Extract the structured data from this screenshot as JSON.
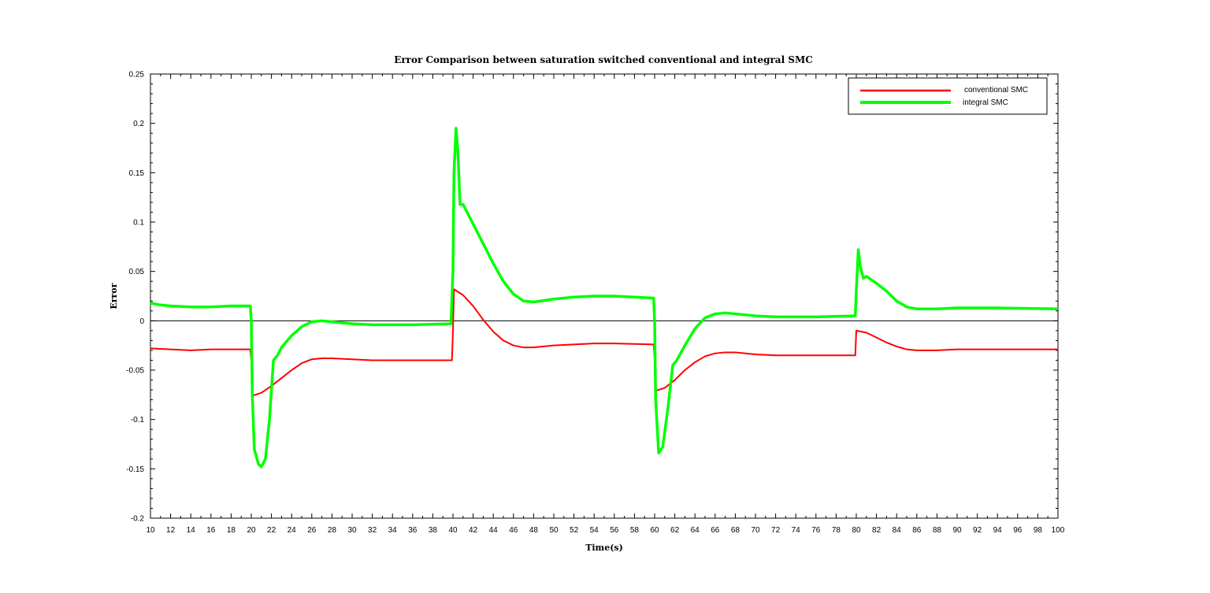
{
  "chart_data": {
    "type": "line",
    "title": "Error Comparison between saturation switched conventional and integral SMC",
    "xlabel": "Time(s)",
    "ylabel": "Error",
    "xlim": [
      10,
      100
    ],
    "ylim": [
      -0.2,
      0.25
    ],
    "xticks": [
      10,
      12,
      14,
      16,
      18,
      20,
      22,
      24,
      26,
      28,
      30,
      32,
      34,
      36,
      38,
      40,
      42,
      44,
      46,
      48,
      50,
      52,
      54,
      56,
      58,
      60,
      62,
      64,
      66,
      68,
      70,
      72,
      74,
      76,
      78,
      80,
      82,
      84,
      86,
      88,
      90,
      92,
      94,
      96,
      98,
      100
    ],
    "yticks": [
      -0.2,
      -0.15,
      -0.1,
      -0.05,
      0,
      0.05,
      0.1,
      0.15,
      0.2,
      0.25
    ],
    "ytick_labels": [
      "-0.2",
      "-0.15",
      "-0.1",
      "-0.05",
      "0",
      "0.05",
      "0.1",
      "0.15",
      "0.2",
      "0.25"
    ],
    "zero_line": true,
    "legend_position": "top-right",
    "series": [
      {
        "name": "conventional SMC",
        "color": "#ff0000",
        "points": [
          [
            10,
            -0.028
          ],
          [
            12,
            -0.029
          ],
          [
            14,
            -0.03
          ],
          [
            16,
            -0.029
          ],
          [
            18,
            -0.029
          ],
          [
            19.9,
            -0.029
          ],
          [
            20.0,
            -0.04
          ],
          [
            20.1,
            -0.076
          ],
          [
            21,
            -0.073
          ],
          [
            22,
            -0.066
          ],
          [
            23,
            -0.058
          ],
          [
            24,
            -0.05
          ],
          [
            25,
            -0.043
          ],
          [
            26,
            -0.039
          ],
          [
            27,
            -0.038
          ],
          [
            28,
            -0.038
          ],
          [
            30,
            -0.039
          ],
          [
            32,
            -0.04
          ],
          [
            36,
            -0.04
          ],
          [
            39.9,
            -0.04
          ],
          [
            40.0,
            -0.01
          ],
          [
            40.1,
            0.032
          ],
          [
            41,
            0.026
          ],
          [
            42,
            0.015
          ],
          [
            43,
            0.001
          ],
          [
            44,
            -0.011
          ],
          [
            45,
            -0.02
          ],
          [
            46,
            -0.025
          ],
          [
            47,
            -0.027
          ],
          [
            48,
            -0.027
          ],
          [
            50,
            -0.025
          ],
          [
            52,
            -0.024
          ],
          [
            54,
            -0.023
          ],
          [
            56,
            -0.023
          ],
          [
            59.9,
            -0.024
          ],
          [
            60.0,
            -0.038
          ],
          [
            60.1,
            -0.071
          ],
          [
            61,
            -0.068
          ],
          [
            62,
            -0.06
          ],
          [
            63,
            -0.05
          ],
          [
            64,
            -0.042
          ],
          [
            65,
            -0.036
          ],
          [
            66,
            -0.033
          ],
          [
            67,
            -0.032
          ],
          [
            68,
            -0.032
          ],
          [
            70,
            -0.034
          ],
          [
            72,
            -0.035
          ],
          [
            76,
            -0.035
          ],
          [
            79.9,
            -0.035
          ],
          [
            80.0,
            -0.01
          ],
          [
            81,
            -0.012
          ],
          [
            82,
            -0.017
          ],
          [
            83,
            -0.022
          ],
          [
            84,
            -0.026
          ],
          [
            85,
            -0.029
          ],
          [
            86,
            -0.03
          ],
          [
            88,
            -0.03
          ],
          [
            90,
            -0.029
          ],
          [
            94,
            -0.029
          ],
          [
            100,
            -0.029
          ]
        ]
      },
      {
        "name": "integral SMC",
        "color": "#00ff00",
        "points": [
          [
            10,
            0.018
          ],
          [
            11,
            0.016
          ],
          [
            12,
            0.015
          ],
          [
            14,
            0.014
          ],
          [
            16,
            0.014
          ],
          [
            18,
            0.015
          ],
          [
            19.9,
            0.015
          ],
          [
            20.0,
            0.0
          ],
          [
            20.1,
            -0.075
          ],
          [
            20.3,
            -0.13
          ],
          [
            20.7,
            -0.145
          ],
          [
            21,
            -0.148
          ],
          [
            21.4,
            -0.14
          ],
          [
            21.8,
            -0.1
          ],
          [
            22.2,
            -0.04
          ],
          [
            22.6,
            -0.035
          ],
          [
            23,
            -0.027
          ],
          [
            24,
            -0.015
          ],
          [
            25,
            -0.006
          ],
          [
            26,
            -0.001
          ],
          [
            27,
            0.0
          ],
          [
            28,
            -0.001
          ],
          [
            30,
            -0.003
          ],
          [
            32,
            -0.004
          ],
          [
            36,
            -0.004
          ],
          [
            39.8,
            -0.003
          ],
          [
            40.0,
            0.05
          ],
          [
            40.1,
            0.15
          ],
          [
            40.3,
            0.195
          ],
          [
            40.5,
            0.17
          ],
          [
            40.7,
            0.118
          ],
          [
            41,
            0.118
          ],
          [
            42,
            0.098
          ],
          [
            43,
            0.078
          ],
          [
            44,
            0.058
          ],
          [
            45,
            0.04
          ],
          [
            46,
            0.027
          ],
          [
            47,
            0.02
          ],
          [
            48,
            0.019
          ],
          [
            50,
            0.022
          ],
          [
            52,
            0.024
          ],
          [
            54,
            0.025
          ],
          [
            56,
            0.025
          ],
          [
            59.9,
            0.023
          ],
          [
            60.0,
            0.0
          ],
          [
            60.1,
            -0.08
          ],
          [
            60.4,
            -0.134
          ],
          [
            60.8,
            -0.128
          ],
          [
            61.3,
            -0.09
          ],
          [
            61.8,
            -0.045
          ],
          [
            62.2,
            -0.04
          ],
          [
            63,
            -0.025
          ],
          [
            64,
            -0.008
          ],
          [
            65,
            0.003
          ],
          [
            66,
            0.007
          ],
          [
            67,
            0.008
          ],
          [
            68,
            0.007
          ],
          [
            70,
            0.005
          ],
          [
            72,
            0.004
          ],
          [
            76,
            0.004
          ],
          [
            79.9,
            0.005
          ],
          [
            80.0,
            0.03
          ],
          [
            80.2,
            0.072
          ],
          [
            80.4,
            0.055
          ],
          [
            80.7,
            0.043
          ],
          [
            81,
            0.045
          ],
          [
            82,
            0.038
          ],
          [
            83,
            0.03
          ],
          [
            84,
            0.02
          ],
          [
            85,
            0.014
          ],
          [
            86,
            0.012
          ],
          [
            88,
            0.012
          ],
          [
            90,
            0.013
          ],
          [
            94,
            0.013
          ],
          [
            100,
            0.012
          ]
        ]
      }
    ]
  }
}
